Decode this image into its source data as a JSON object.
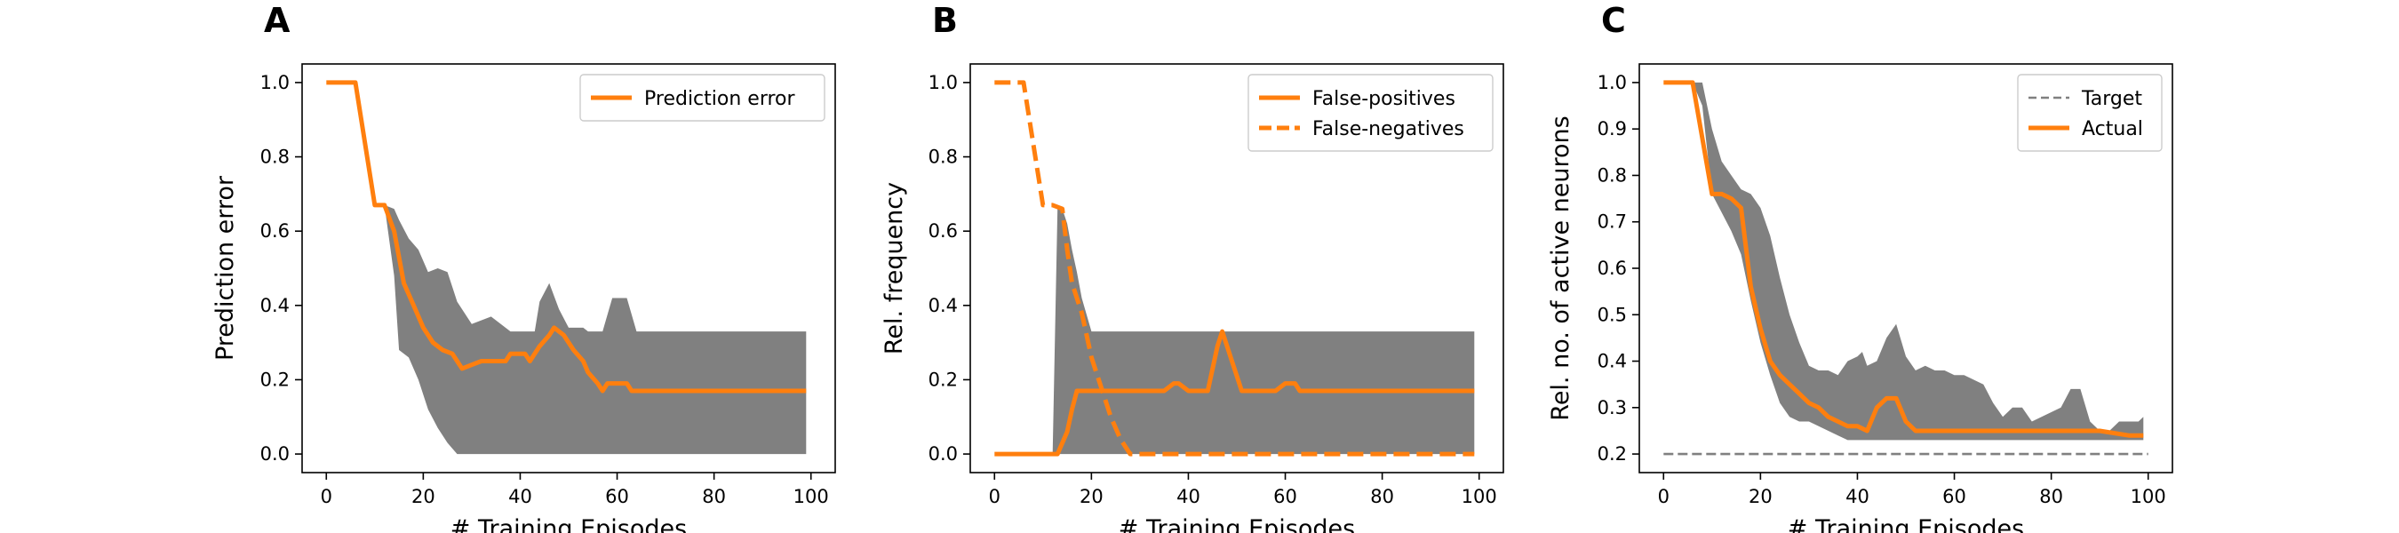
{
  "figure": {
    "background": "#ffffff"
  },
  "chart_data": [
    {
      "type": "line",
      "panel_label": "A",
      "xlabel": "# Training Episodes",
      "ylabel": "Prediction error",
      "xlim": [
        -5,
        105
      ],
      "ylim": [
        -0.05,
        1.05
      ],
      "xticks": [
        0,
        20,
        40,
        60,
        80,
        100
      ],
      "xtick_labels": [
        "0",
        "20",
        "40",
        "60",
        "80",
        "100"
      ],
      "yticks": [
        0.0,
        0.2,
        0.4,
        0.6,
        0.8,
        1.0
      ],
      "ytick_labels": [
        "0.0",
        "0.2",
        "0.4",
        "0.6",
        "0.8",
        "1.0"
      ],
      "grid": false,
      "legend": {
        "position": "top-right",
        "entries": [
          "Prediction error"
        ]
      },
      "band": {
        "color": "#808080",
        "x": [
          0,
          6,
          10,
          12,
          14,
          15,
          17,
          19,
          21,
          23,
          25,
          27,
          30,
          34,
          38,
          40,
          43,
          44,
          46,
          48,
          50,
          53,
          54,
          57,
          59,
          60,
          62,
          64,
          99
        ],
        "lower": [
          1.0,
          1.0,
          0.67,
          0.67,
          0.48,
          0.28,
          0.26,
          0.2,
          0.12,
          0.07,
          0.03,
          0.0,
          0.0,
          0.0,
          0.0,
          0.0,
          0.0,
          0.0,
          0.0,
          0.0,
          0.0,
          0.0,
          0.0,
          0.0,
          0.0,
          0.0,
          0.0,
          0.0,
          0.0
        ],
        "upper": [
          1.0,
          1.0,
          0.67,
          0.67,
          0.66,
          0.63,
          0.58,
          0.55,
          0.49,
          0.5,
          0.49,
          0.41,
          0.35,
          0.37,
          0.33,
          0.33,
          0.33,
          0.41,
          0.46,
          0.39,
          0.34,
          0.34,
          0.33,
          0.33,
          0.42,
          0.42,
          0.42,
          0.33,
          0.33
        ]
      },
      "series": [
        {
          "name": "Prediction error",
          "color": "#ff7f0e",
          "dash": "solid",
          "x": [
            0,
            6,
            10,
            12,
            14,
            16,
            18,
            20,
            22,
            24,
            26,
            28,
            30,
            32,
            36,
            37,
            38,
            40,
            41,
            42,
            44,
            46,
            47,
            49,
            51,
            53,
            54,
            56,
            57,
            58,
            60,
            62,
            63,
            65,
            99
          ],
          "y": [
            1.0,
            1.0,
            0.67,
            0.67,
            0.6,
            0.46,
            0.4,
            0.34,
            0.3,
            0.28,
            0.27,
            0.23,
            0.24,
            0.25,
            0.25,
            0.25,
            0.27,
            0.27,
            0.27,
            0.25,
            0.29,
            0.32,
            0.34,
            0.32,
            0.28,
            0.25,
            0.22,
            0.19,
            0.17,
            0.19,
            0.19,
            0.19,
            0.17,
            0.17,
            0.17
          ]
        }
      ]
    },
    {
      "type": "line",
      "panel_label": "B",
      "xlabel": "# Training Episodes",
      "ylabel": "Rel. frequency",
      "xlim": [
        -5,
        105
      ],
      "ylim": [
        -0.05,
        1.05
      ],
      "xticks": [
        0,
        20,
        40,
        60,
        80,
        100
      ],
      "xtick_labels": [
        "0",
        "20",
        "40",
        "60",
        "80",
        "100"
      ],
      "yticks": [
        0.0,
        0.2,
        0.4,
        0.6,
        0.8,
        1.0
      ],
      "ytick_labels": [
        "0.0",
        "0.2",
        "0.4",
        "0.6",
        "0.8",
        "1.0"
      ],
      "grid": false,
      "legend": {
        "position": "top-right",
        "entries": [
          "False-positives",
          "False-negatives"
        ]
      },
      "band": {
        "color": "#808080",
        "x": [
          0,
          12,
          13,
          14,
          15,
          16,
          17,
          18,
          20,
          22,
          26,
          28,
          30,
          99
        ],
        "lower": [
          0.0,
          0.0,
          0.0,
          0.0,
          0.0,
          0.0,
          0.0,
          0.0,
          0.0,
          0.0,
          0.0,
          0.0,
          0.0,
          0.0
        ],
        "upper": [
          0.0,
          0.0,
          0.66,
          0.66,
          0.62,
          0.55,
          0.49,
          0.42,
          0.33,
          0.33,
          0.33,
          0.33,
          0.33,
          0.33
        ]
      },
      "series": [
        {
          "name": "False-positives",
          "color": "#ff7f0e",
          "dash": "solid",
          "x": [
            0,
            13,
            15,
            16,
            17,
            19,
            24,
            30,
            35,
            37,
            38,
            40,
            44,
            46,
            47,
            49,
            51,
            54,
            58,
            60,
            62,
            63,
            99
          ],
          "y": [
            0.0,
            0.0,
            0.06,
            0.12,
            0.17,
            0.17,
            0.17,
            0.17,
            0.17,
            0.19,
            0.19,
            0.17,
            0.17,
            0.29,
            0.33,
            0.25,
            0.17,
            0.17,
            0.17,
            0.19,
            0.19,
            0.17,
            0.17
          ]
        },
        {
          "name": "False-negatives",
          "color": "#ff7f0e",
          "dash": "dashed",
          "x": [
            0,
            6,
            10,
            12,
            14,
            15,
            16,
            18,
            20,
            22,
            24,
            26,
            28,
            99
          ],
          "y": [
            1.0,
            1.0,
            0.67,
            0.67,
            0.66,
            0.55,
            0.46,
            0.38,
            0.26,
            0.18,
            0.1,
            0.04,
            0.0,
            0.0
          ]
        }
      ]
    },
    {
      "type": "line",
      "panel_label": "C",
      "xlabel": "# Training Episodes",
      "ylabel": "Rel. no. of active neurons",
      "xlim": [
        -5,
        105
      ],
      "ylim": [
        0.16,
        1.04
      ],
      "xticks": [
        0,
        20,
        40,
        60,
        80,
        100
      ],
      "xtick_labels": [
        "0",
        "20",
        "40",
        "60",
        "80",
        "100"
      ],
      "yticks": [
        0.2,
        0.3,
        0.4,
        0.5,
        0.6,
        0.7,
        0.8,
        0.9,
        1.0
      ],
      "ytick_labels": [
        "0.2",
        "0.3",
        "0.4",
        "0.5",
        "0.6",
        "0.7",
        "0.8",
        "0.9",
        "1.0"
      ],
      "grid": false,
      "legend": {
        "position": "top-right",
        "entries": [
          "Target",
          "Actual"
        ]
      },
      "band": {
        "color": "#808080",
        "x": [
          0,
          6,
          8,
          10,
          12,
          14,
          16,
          18,
          20,
          22,
          24,
          26,
          28,
          30,
          32,
          34,
          36,
          38,
          40,
          41,
          42,
          44,
          46,
          48,
          50,
          52,
          54,
          56,
          58,
          60,
          62,
          64,
          66,
          68,
          70,
          72,
          74,
          76,
          78,
          80,
          82,
          84,
          86,
          88,
          90,
          92,
          94,
          96,
          98,
          99
        ],
        "lower": [
          1.0,
          1.0,
          0.95,
          0.76,
          0.72,
          0.68,
          0.63,
          0.53,
          0.44,
          0.37,
          0.31,
          0.28,
          0.27,
          0.27,
          0.26,
          0.25,
          0.24,
          0.23,
          0.23,
          0.23,
          0.23,
          0.23,
          0.23,
          0.23,
          0.23,
          0.23,
          0.23,
          0.23,
          0.23,
          0.23,
          0.23,
          0.23,
          0.23,
          0.23,
          0.23,
          0.23,
          0.23,
          0.23,
          0.23,
          0.23,
          0.23,
          0.23,
          0.23,
          0.23,
          0.23,
          0.23,
          0.23,
          0.23,
          0.23,
          0.23
        ],
        "upper": [
          1.0,
          1.0,
          1.0,
          0.9,
          0.83,
          0.8,
          0.77,
          0.76,
          0.73,
          0.67,
          0.58,
          0.5,
          0.44,
          0.39,
          0.38,
          0.38,
          0.37,
          0.4,
          0.41,
          0.42,
          0.39,
          0.4,
          0.45,
          0.48,
          0.41,
          0.38,
          0.39,
          0.38,
          0.38,
          0.37,
          0.37,
          0.36,
          0.35,
          0.31,
          0.28,
          0.3,
          0.3,
          0.27,
          0.28,
          0.29,
          0.3,
          0.34,
          0.34,
          0.27,
          0.25,
          0.25,
          0.27,
          0.27,
          0.27,
          0.28
        ]
      },
      "series": [
        {
          "name": "Target",
          "color": "#808080",
          "dash": "dashed",
          "x": [
            0,
            100
          ],
          "y": [
            0.2,
            0.2
          ]
        },
        {
          "name": "Actual",
          "color": "#ff7f0e",
          "dash": "solid",
          "x": [
            0,
            6,
            8,
            10,
            12,
            14,
            16,
            18,
            20,
            22,
            24,
            26,
            28,
            30,
            32,
            34,
            36,
            38,
            40,
            42,
            44,
            46,
            48,
            50,
            52,
            56,
            62,
            70,
            80,
            90,
            96,
            99
          ],
          "y": [
            1.0,
            1.0,
            0.88,
            0.76,
            0.76,
            0.75,
            0.73,
            0.56,
            0.47,
            0.4,
            0.37,
            0.35,
            0.33,
            0.31,
            0.3,
            0.28,
            0.27,
            0.26,
            0.26,
            0.25,
            0.3,
            0.32,
            0.32,
            0.27,
            0.25,
            0.25,
            0.25,
            0.25,
            0.25,
            0.25,
            0.24,
            0.24
          ]
        }
      ]
    }
  ]
}
